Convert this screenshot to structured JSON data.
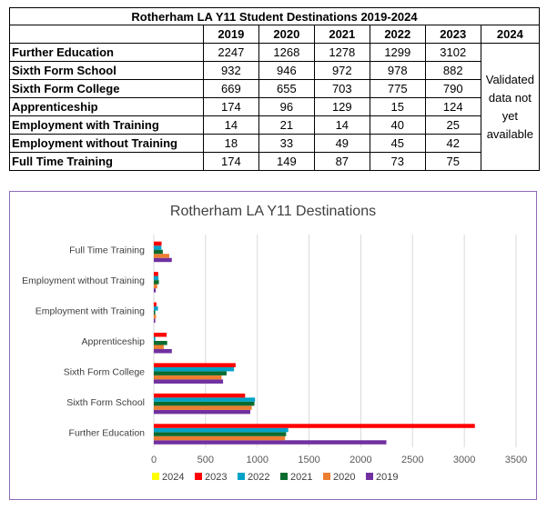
{
  "table": {
    "title": "Rotherham LA Y11 Student Destinations 2019-2024",
    "years": [
      "2019",
      "2020",
      "2021",
      "2022",
      "2023",
      "2024"
    ],
    "rows": [
      {
        "label": "Further Education",
        "values": [
          "2247",
          "1268",
          "1278",
          "1299",
          "3102"
        ]
      },
      {
        "label": "Sixth Form School",
        "values": [
          "932",
          "946",
          "972",
          "978",
          "882"
        ]
      },
      {
        "label": "Sixth Form College",
        "values": [
          "669",
          "655",
          "703",
          "775",
          "790"
        ]
      },
      {
        "label": "Apprenticeship",
        "values": [
          "174",
          "96",
          "129",
          "15",
          "124"
        ]
      },
      {
        "label": "Employment with Training",
        "values": [
          "14",
          "21",
          "14",
          "40",
          "25"
        ]
      },
      {
        "label": "Employment without Training",
        "values": [
          "18",
          "33",
          "49",
          "45",
          "42"
        ]
      },
      {
        "label": "Full Time Training",
        "values": [
          "174",
          "149",
          "87",
          "73",
          "75"
        ]
      }
    ],
    "note_lines": [
      "Validated",
      "data not",
      "yet",
      "available"
    ]
  },
  "chart_data": {
    "type": "bar",
    "orientation": "horizontal",
    "title": "Rotherham LA Y11 Destinations",
    "categories": [
      "Further Education",
      "Sixth Form School",
      "Sixth Form College",
      "Apprenticeship",
      "Employment with Training",
      "Employment without Training",
      "Full Time Training"
    ],
    "series": [
      {
        "name": "2019",
        "color": "#7030a0",
        "values": [
          2247,
          932,
          669,
          174,
          14,
          18,
          174
        ]
      },
      {
        "name": "2020",
        "color": "#ed7d31",
        "values": [
          1268,
          946,
          655,
          96,
          21,
          33,
          149
        ]
      },
      {
        "name": "2021",
        "color": "#0b6b2e",
        "values": [
          1278,
          972,
          703,
          129,
          14,
          49,
          87
        ]
      },
      {
        "name": "2022",
        "color": "#00a2c7",
        "values": [
          1299,
          978,
          775,
          15,
          40,
          45,
          73
        ]
      },
      {
        "name": "2023",
        "color": "#ff0000",
        "values": [
          3102,
          882,
          790,
          124,
          25,
          42,
          75
        ]
      },
      {
        "name": "2024",
        "color": "#ffff00",
        "values": [
          null,
          null,
          null,
          null,
          null,
          null,
          null
        ]
      }
    ],
    "legend_order": [
      "2024",
      "2023",
      "2022",
      "2021",
      "2020",
      "2019"
    ],
    "xlim": [
      0,
      3500
    ],
    "xticks": [
      0,
      500,
      1000,
      1500,
      2000,
      2500,
      3000,
      3500
    ],
    "grid": true,
    "legend_position": "bottom"
  }
}
